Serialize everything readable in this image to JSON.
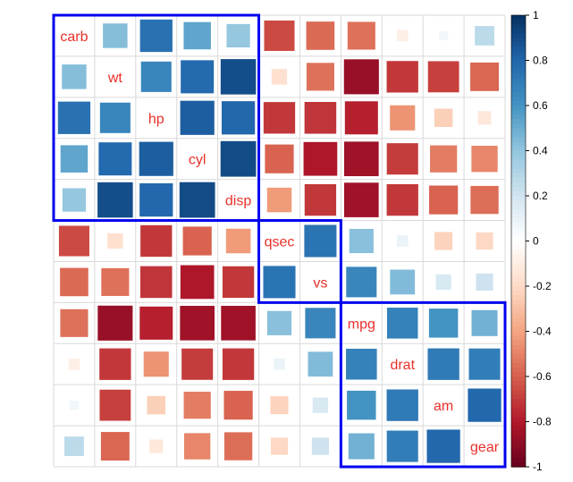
{
  "chart_data": {
    "type": "heatmap",
    "method": "square",
    "order": "hclust",
    "variables": [
      "carb",
      "wt",
      "hp",
      "cyl",
      "disp",
      "qsec",
      "vs",
      "mpg",
      "drat",
      "am",
      "gear"
    ],
    "matrix": [
      [
        1,
        0.43,
        0.75,
        0.53,
        0.39,
        -0.66,
        -0.57,
        -0.55,
        -0.09,
        0.06,
        0.27
      ],
      [
        0.43,
        1,
        0.66,
        0.78,
        0.89,
        -0.17,
        -0.55,
        -0.87,
        -0.71,
        -0.69,
        -0.58
      ],
      [
        0.75,
        0.66,
        1,
        0.83,
        0.79,
        -0.71,
        -0.72,
        -0.78,
        -0.45,
        -0.24,
        -0.13
      ],
      [
        0.53,
        0.78,
        0.83,
        1,
        0.9,
        -0.59,
        -0.81,
        -0.85,
        -0.7,
        -0.52,
        -0.49
      ],
      [
        0.39,
        0.89,
        0.79,
        0.9,
        1,
        -0.43,
        -0.71,
        -0.85,
        -0.71,
        -0.59,
        -0.56
      ],
      [
        -0.66,
        -0.17,
        -0.71,
        -0.59,
        -0.43,
        1,
        0.74,
        0.42,
        0.09,
        -0.23,
        -0.21
      ],
      [
        -0.57,
        -0.55,
        -0.72,
        -0.81,
        -0.71,
        0.74,
        1,
        0.66,
        0.44,
        0.17,
        0.21
      ],
      [
        -0.55,
        -0.87,
        -0.78,
        -0.85,
        -0.85,
        0.42,
        0.66,
        1,
        0.68,
        0.6,
        0.48
      ],
      [
        -0.09,
        -0.71,
        -0.45,
        -0.7,
        -0.71,
        0.09,
        0.44,
        0.68,
        1,
        0.71,
        0.7
      ],
      [
        0.06,
        -0.69,
        -0.24,
        -0.52,
        -0.59,
        -0.23,
        0.17,
        0.6,
        0.71,
        1,
        0.79
      ],
      [
        0.27,
        -0.58,
        -0.13,
        -0.49,
        -0.56,
        -0.21,
        0.21,
        0.48,
        0.7,
        0.79,
        1
      ]
    ],
    "clusters": [
      [
        "carb",
        "disp"
      ],
      [
        "qsec",
        "vs"
      ],
      [
        "mpg",
        "gear"
      ]
    ],
    "colorbar": {
      "range": [
        -1,
        1
      ],
      "ticks": [
        "1",
        "0.8",
        "0.6",
        "0.4",
        "0.2",
        "0",
        "-0.2",
        "-0.4",
        "-0.6",
        "-0.8",
        "-1"
      ]
    },
    "colors": {
      "palette": [
        "#67001F",
        "#B2182B",
        "#D6604D",
        "#F4A582",
        "#FDDBC7",
        "#FFFFFF",
        "#D1E5F0",
        "#92C5DE",
        "#4393C3",
        "#2166AC",
        "#053061"
      ],
      "label": "#E8302A",
      "cluster_rect": "#0000EE",
      "grid": "#D9D9D9"
    }
  }
}
